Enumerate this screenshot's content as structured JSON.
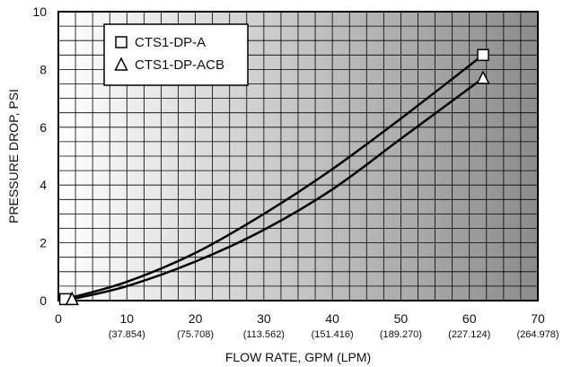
{
  "chart_data": {
    "type": "line",
    "title": "",
    "xlabel": "FLOW RATE, GPM (LPM)",
    "ylabel": "PRESSURE DROP, PSI",
    "xlim": [
      0,
      70
    ],
    "ylim": [
      0,
      10
    ],
    "x_ticks": [
      0,
      10,
      20,
      30,
      40,
      50,
      60,
      70
    ],
    "x_ticks_lpm": [
      "",
      "(37.854)",
      "(75.708)",
      "(113.562)",
      "(151.416)",
      "(189.270)",
      "(227.124)",
      "(264.978)"
    ],
    "y_ticks": [
      0,
      2,
      4,
      6,
      8,
      10
    ],
    "grid": true,
    "legend_position": "top-left",
    "series": [
      {
        "name": "CTS1-DP-A",
        "marker": "square",
        "x": [
          1,
          10,
          20,
          30,
          40,
          50,
          62
        ],
        "y": [
          0.05,
          0.65,
          1.65,
          3.0,
          4.55,
          6.3,
          8.5
        ]
      },
      {
        "name": "CTS1-DP-ACB",
        "marker": "triangle",
        "x": [
          2,
          10,
          20,
          30,
          40,
          50,
          62
        ],
        "y": [
          0.05,
          0.5,
          1.35,
          2.45,
          3.85,
          5.6,
          7.7
        ]
      }
    ]
  }
}
